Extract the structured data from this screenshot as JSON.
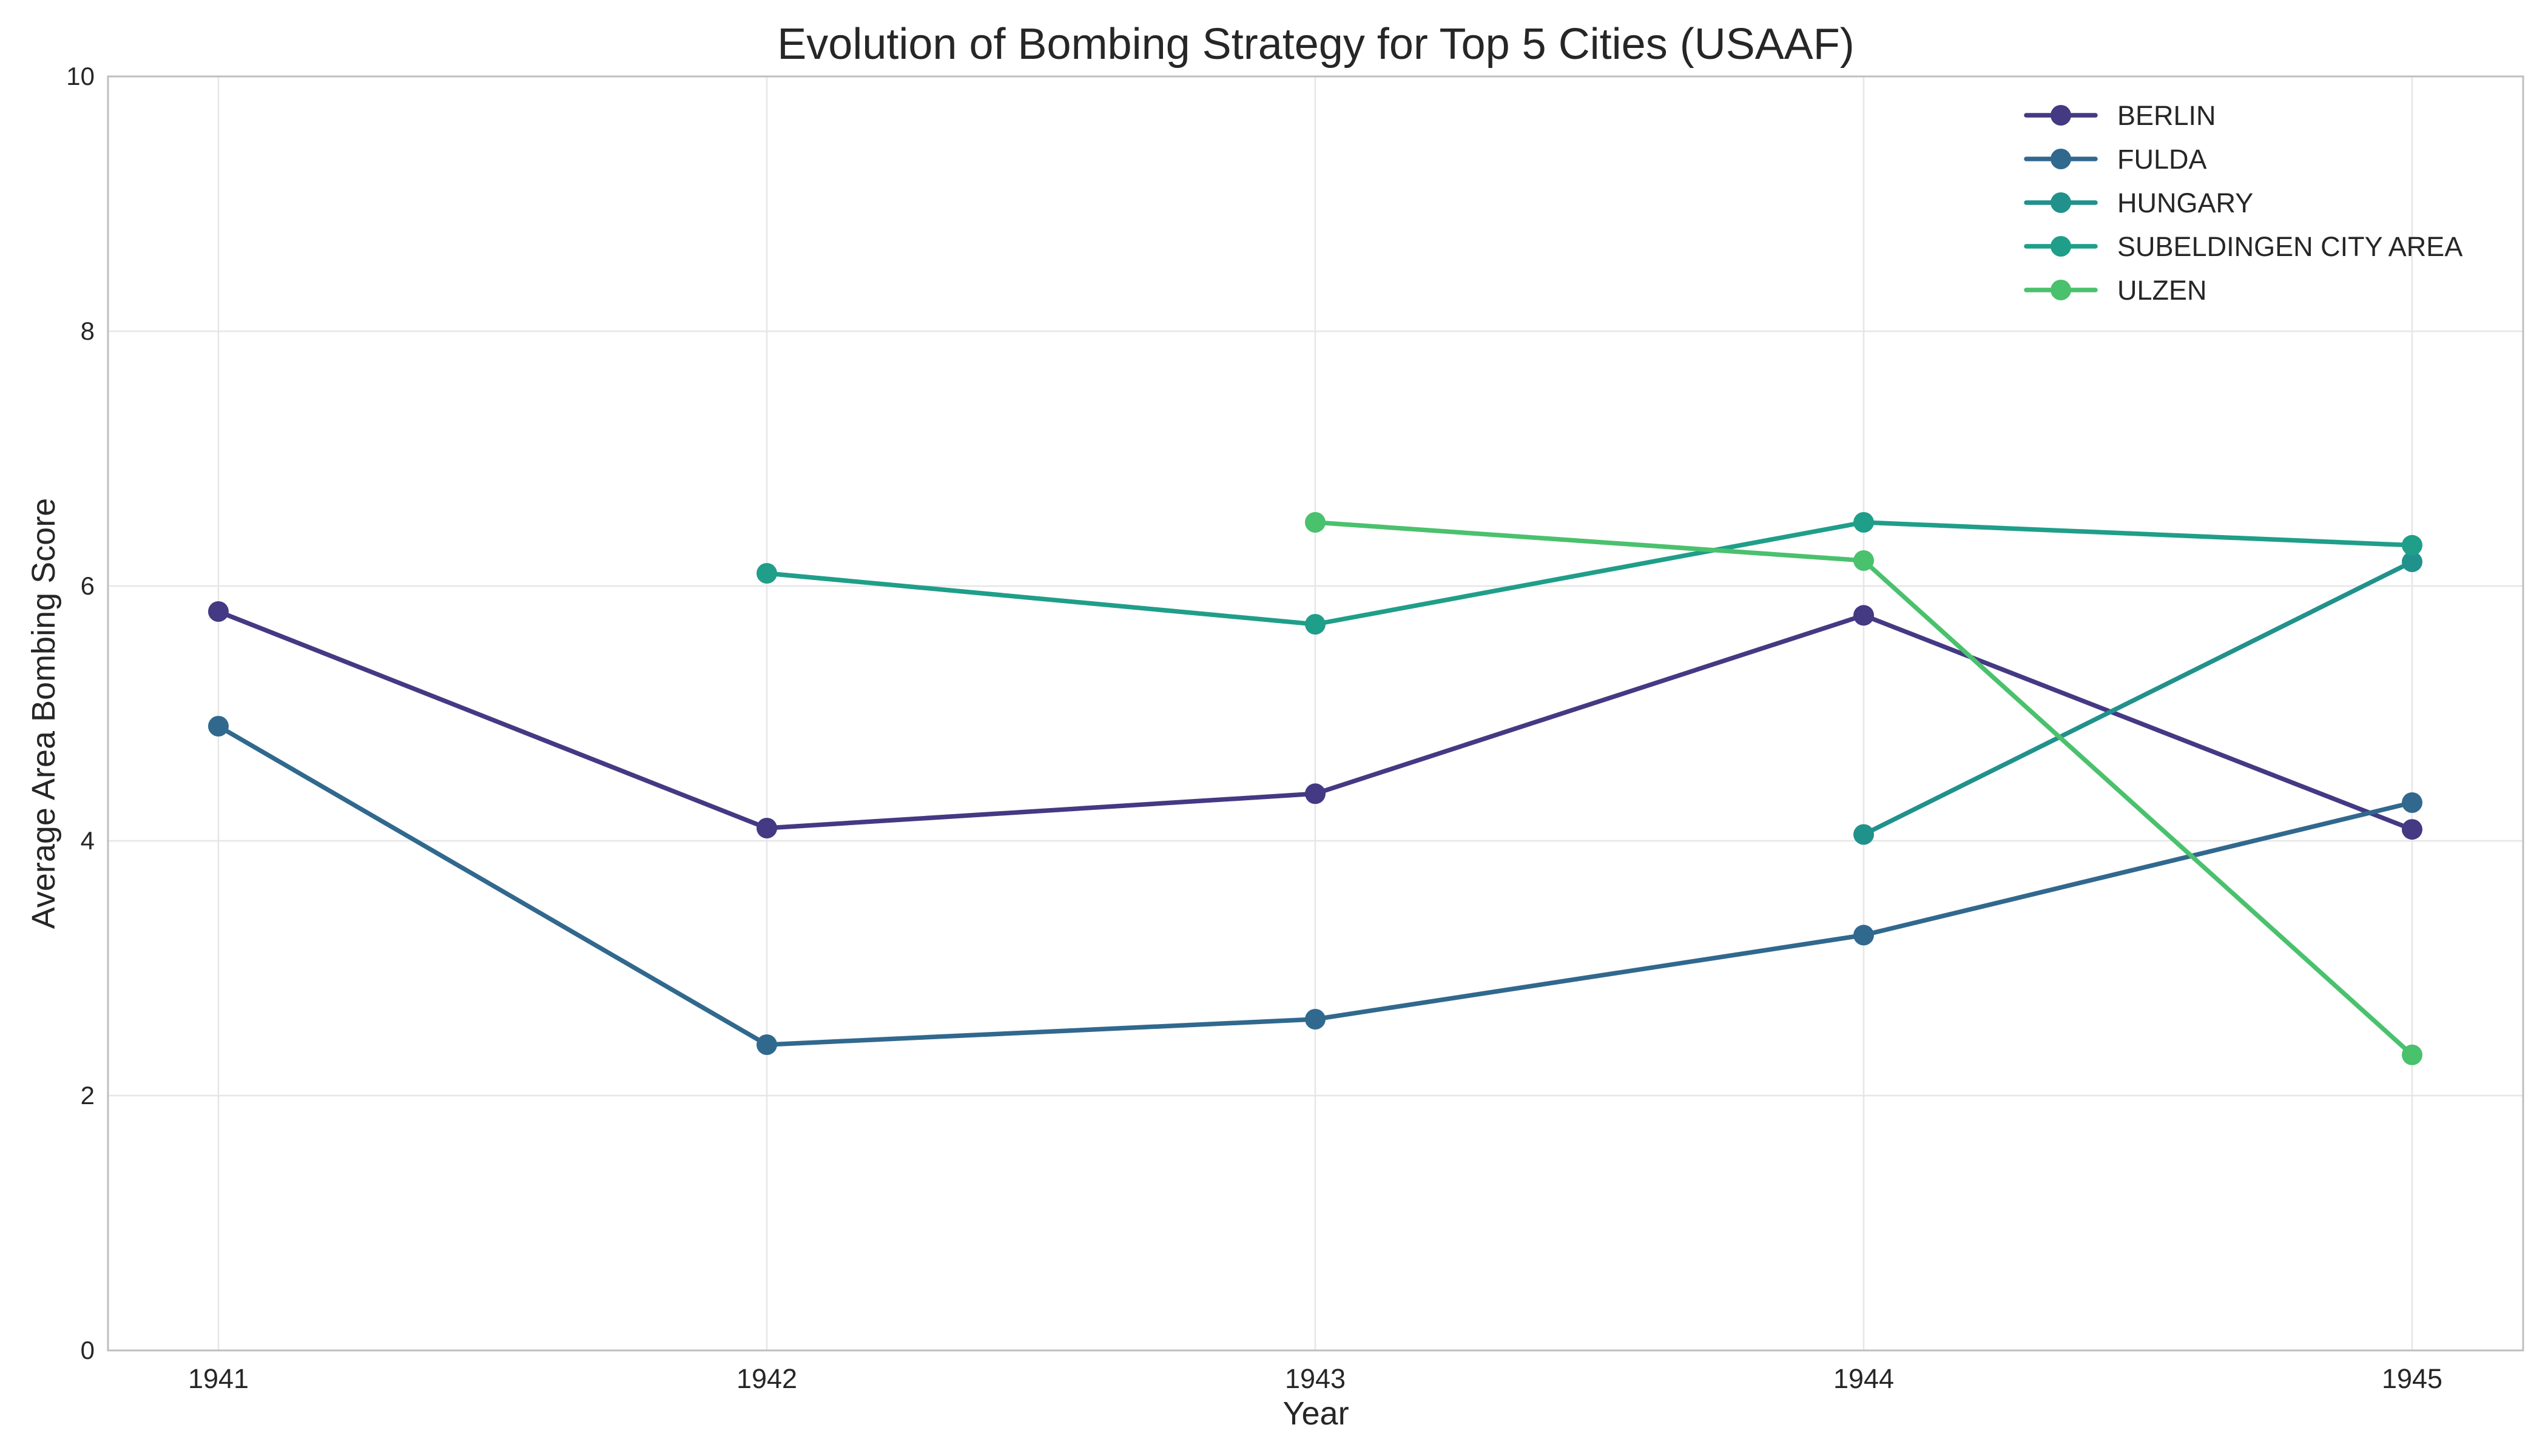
{
  "chart_data": {
    "type": "line",
    "title": "Evolution of Bombing Strategy for Top 5 Cities (USAAF)",
    "xlabel": "Year",
    "ylabel": "Average Area Bombing Score",
    "x": [
      1941,
      1942,
      1943,
      1944,
      1945
    ],
    "xticks": [
      "1941",
      "1942",
      "1943",
      "1944",
      "1945"
    ],
    "ylim": [
      0,
      10
    ],
    "yticks": [
      "0",
      "2",
      "4",
      "6",
      "8",
      "10"
    ],
    "grid": true,
    "legend_position": "top-right",
    "series": [
      {
        "name": "BERLIN",
        "color": "#443983",
        "values": [
          5.8,
          4.1,
          4.37,
          5.77,
          4.09
        ]
      },
      {
        "name": "FULDA",
        "color": "#31688e",
        "values": [
          4.9,
          2.4,
          2.6,
          3.26,
          4.3
        ]
      },
      {
        "name": "HUNGARY",
        "color": "#21918c",
        "values": [
          null,
          null,
          null,
          4.05,
          6.19
        ]
      },
      {
        "name": "SUBELDINGEN CITY AREA",
        "color": "#1f9e89",
        "values": [
          null,
          6.1,
          5.7,
          6.5,
          6.32
        ]
      },
      {
        "name": "ULZEN",
        "color": "#4ac16d",
        "values": [
          null,
          null,
          6.5,
          6.2,
          2.32
        ]
      }
    ]
  }
}
